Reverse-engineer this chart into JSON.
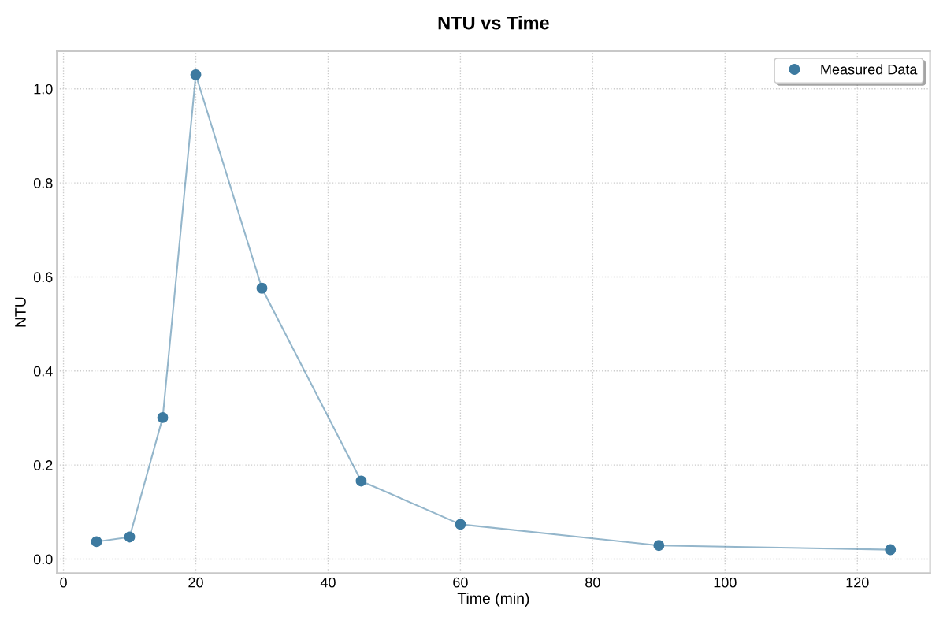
{
  "chart_data": {
    "type": "line",
    "title": "NTU vs Time",
    "xlabel": "Time (min)",
    "ylabel": "NTU",
    "x": [
      5,
      10,
      15,
      20,
      30,
      45,
      60,
      90,
      125
    ],
    "series": [
      {
        "name": "Measured Data",
        "color": "#3d7aa0",
        "values": [
          0.037,
          0.047,
          0.301,
          1.03,
          0.576,
          0.166,
          0.074,
          0.029,
          0.02
        ]
      }
    ],
    "xlim": [
      -1,
      131
    ],
    "xticks": [
      0,
      20,
      40,
      60,
      80,
      100,
      120
    ],
    "ylim": [
      -0.03,
      1.08
    ],
    "yticks": [
      {
        "value": 0,
        "label": "0.0"
      },
      {
        "value": 0.2,
        "label": "0.2"
      },
      {
        "value": 0.4,
        "label": "0.4"
      },
      {
        "value": 0.6,
        "label": "0.6"
      },
      {
        "value": 0.8,
        "label": "0.8"
      },
      {
        "value": 1.0,
        "label": "1.0"
      }
    ],
    "grid": true,
    "legend": "top right",
    "marker": "circle",
    "line_style": "solid"
  }
}
